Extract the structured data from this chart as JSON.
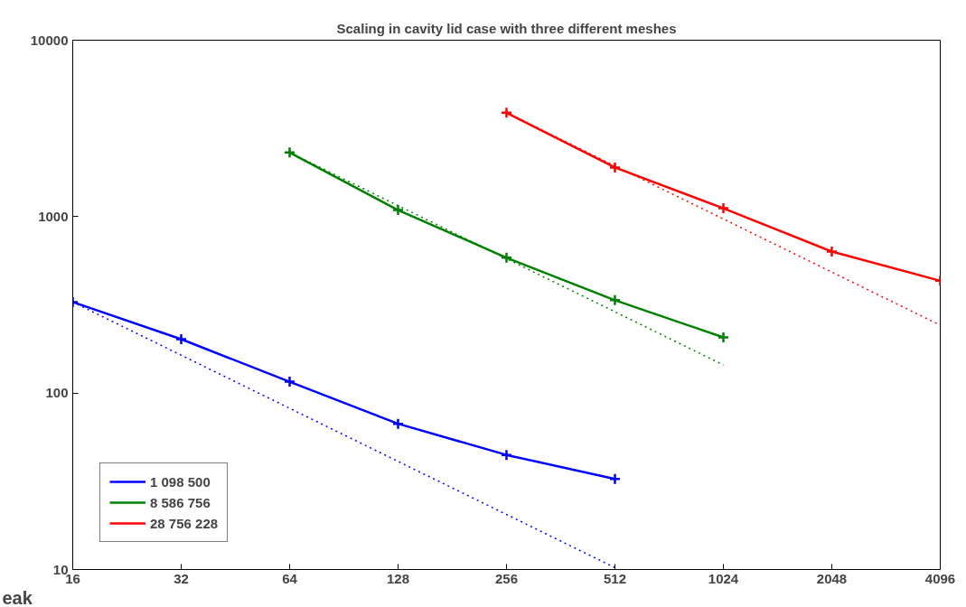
{
  "chart_data": {
    "type": "line",
    "title": "Scaling in cavity lid case with three different meshes",
    "annotations": [
      "eak"
    ],
    "log": "xy",
    "grid": false,
    "legend": "bottom left",
    "marker": "cross",
    "xlim": [
      16,
      4096
    ],
    "xticks": [
      16,
      32,
      64,
      128,
      256,
      512,
      1024,
      2048,
      4096
    ],
    "ylim": [
      10,
      10000
    ],
    "yticks": [
      10,
      100,
      1000,
      10000
    ],
    "series": [
      {
        "name": "1 098 500",
        "color": "#0000ff",
        "x": [
          16,
          32,
          64,
          128,
          256,
          512
        ],
        "values": [
          328,
          202,
          116,
          67,
          44.6,
          32.6
        ]
      },
      {
        "name": "8 586 756",
        "color": "#008000",
        "x": [
          64,
          128,
          256,
          512,
          1024
        ],
        "values": [
          2310,
          1090,
          585,
          336,
          207
        ]
      },
      {
        "name": "28 756 228",
        "color": "#ff0000",
        "x": [
          256,
          512,
          1024,
          2048,
          4096
        ],
        "values": [
          3880,
          1900,
          1115,
          634,
          433
        ]
      },
      {
        "color": "#0000ff",
        "x": [
          16,
          512
        ],
        "values": [
          328,
          10.25
        ],
        "marker": "none",
        "line_style": "dotted"
      },
      {
        "color": "#008000",
        "x": [
          64,
          1024
        ],
        "values": [
          2310,
          144.4
        ],
        "marker": "none",
        "line_style": "dotted"
      },
      {
        "color": "#ff0000",
        "x": [
          256,
          4096
        ],
        "values": [
          3880,
          242.5
        ],
        "marker": "none",
        "line_style": "dotted"
      }
    ]
  }
}
